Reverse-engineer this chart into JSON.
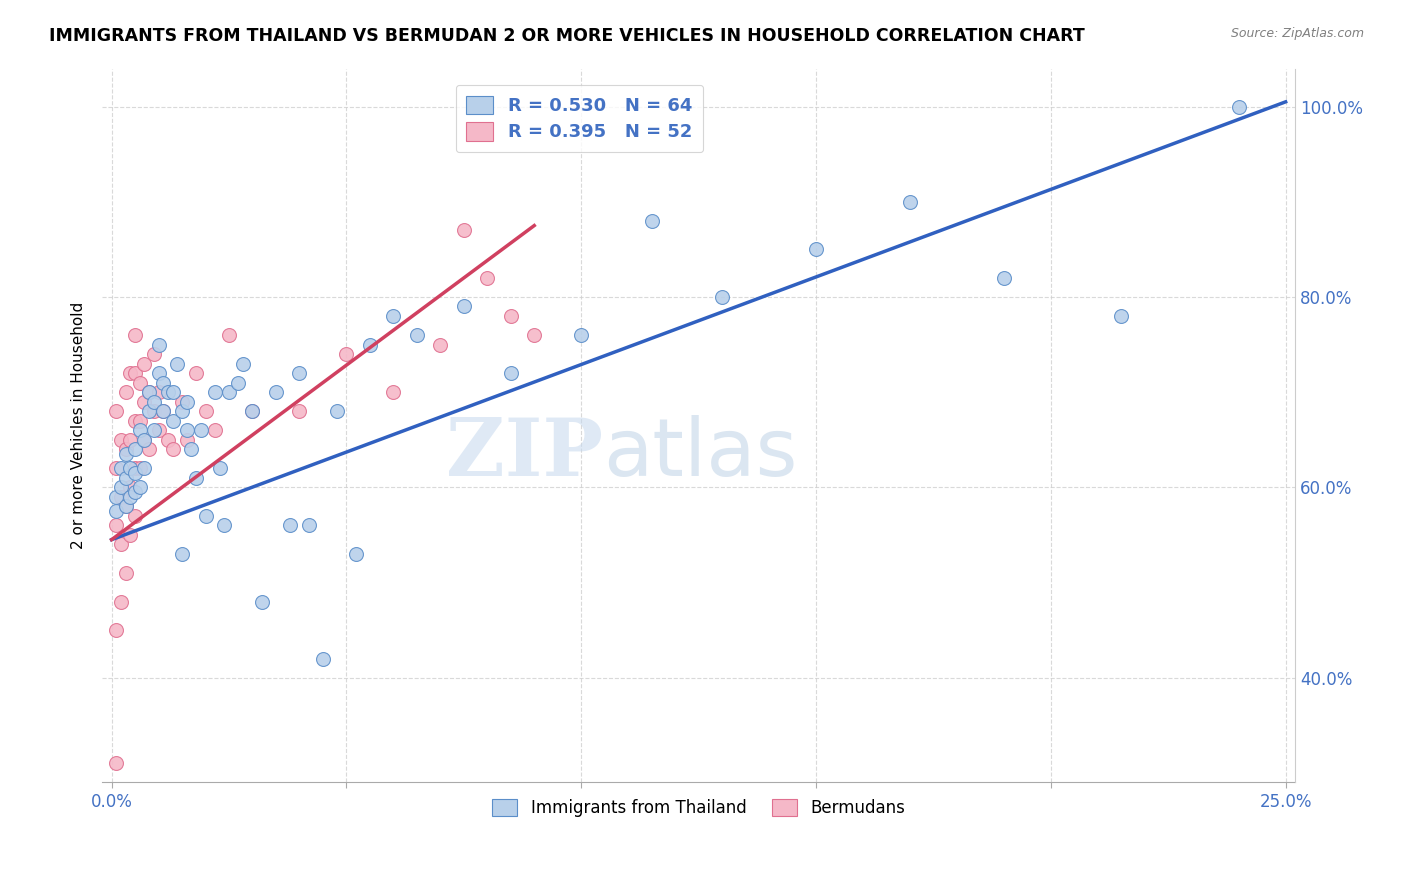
{
  "title": "IMMIGRANTS FROM THAILAND VS BERMUDAN 2 OR MORE VEHICLES IN HOUSEHOLD CORRELATION CHART",
  "source": "Source: ZipAtlas.com",
  "ylabel": "2 or more Vehicles in Household",
  "xlim": [
    -0.002,
    0.252
  ],
  "ylim": [
    0.29,
    1.04
  ],
  "xticks": [
    0.0,
    0.05,
    0.1,
    0.15,
    0.2,
    0.25
  ],
  "xticklabels": [
    "0.0%",
    "",
    "",
    "",
    "",
    "25.0%"
  ],
  "yticks_grid": [
    0.4,
    0.6,
    0.8,
    1.0
  ],
  "yticks_right": [
    0.4,
    0.6,
    0.8,
    1.0
  ],
  "yticklabels_right": [
    "40.0%",
    "60.0%",
    "80.0%",
    "100.0%"
  ],
  "blue_fill_color": "#b8d0ea",
  "pink_fill_color": "#f5b8c8",
  "blue_edge_color": "#5b8ec9",
  "pink_edge_color": "#e07090",
  "blue_line_color": "#3060c0",
  "pink_line_color": "#d04060",
  "legend_R_blue": "R = 0.530",
  "legend_N_blue": "N = 64",
  "legend_R_pink": "R = 0.395",
  "legend_N_pink": "N = 52",
  "legend_label_blue": "Immigrants from Thailand",
  "legend_label_pink": "Bermudans",
  "watermark_zip": "ZIP",
  "watermark_atlas": "atlas",
  "blue_scatter_x": [
    0.001,
    0.001,
    0.002,
    0.002,
    0.003,
    0.003,
    0.003,
    0.004,
    0.004,
    0.005,
    0.005,
    0.005,
    0.006,
    0.006,
    0.007,
    0.007,
    0.008,
    0.008,
    0.009,
    0.009,
    0.01,
    0.01,
    0.011,
    0.011,
    0.012,
    0.013,
    0.013,
    0.014,
    0.015,
    0.015,
    0.016,
    0.016,
    0.017,
    0.018,
    0.019,
    0.02,
    0.022,
    0.023,
    0.024,
    0.025,
    0.027,
    0.028,
    0.03,
    0.032,
    0.035,
    0.038,
    0.04,
    0.042,
    0.045,
    0.048,
    0.052,
    0.055,
    0.06,
    0.065,
    0.075,
    0.085,
    0.1,
    0.115,
    0.13,
    0.15,
    0.17,
    0.19,
    0.215,
    0.24
  ],
  "blue_scatter_y": [
    0.575,
    0.59,
    0.6,
    0.62,
    0.58,
    0.61,
    0.635,
    0.59,
    0.62,
    0.595,
    0.615,
    0.64,
    0.6,
    0.66,
    0.62,
    0.65,
    0.68,
    0.7,
    0.66,
    0.69,
    0.72,
    0.75,
    0.68,
    0.71,
    0.7,
    0.67,
    0.7,
    0.73,
    0.68,
    0.53,
    0.66,
    0.69,
    0.64,
    0.61,
    0.66,
    0.57,
    0.7,
    0.62,
    0.56,
    0.7,
    0.71,
    0.73,
    0.68,
    0.48,
    0.7,
    0.56,
    0.72,
    0.56,
    0.42,
    0.68,
    0.53,
    0.75,
    0.78,
    0.76,
    0.79,
    0.72,
    0.76,
    0.88,
    0.8,
    0.85,
    0.9,
    0.82,
    0.78,
    1.0
  ],
  "pink_scatter_x": [
    0.001,
    0.001,
    0.001,
    0.001,
    0.001,
    0.002,
    0.002,
    0.002,
    0.002,
    0.003,
    0.003,
    0.003,
    0.003,
    0.004,
    0.004,
    0.004,
    0.004,
    0.005,
    0.005,
    0.005,
    0.005,
    0.005,
    0.006,
    0.006,
    0.006,
    0.007,
    0.007,
    0.007,
    0.008,
    0.008,
    0.009,
    0.009,
    0.01,
    0.01,
    0.011,
    0.012,
    0.013,
    0.015,
    0.016,
    0.018,
    0.02,
    0.022,
    0.025,
    0.03,
    0.04,
    0.05,
    0.06,
    0.07,
    0.075,
    0.08,
    0.085,
    0.09
  ],
  "pink_scatter_y": [
    0.31,
    0.45,
    0.56,
    0.62,
    0.68,
    0.48,
    0.54,
    0.59,
    0.65,
    0.51,
    0.58,
    0.64,
    0.7,
    0.55,
    0.6,
    0.65,
    0.72,
    0.57,
    0.62,
    0.67,
    0.72,
    0.76,
    0.62,
    0.67,
    0.71,
    0.65,
    0.69,
    0.73,
    0.64,
    0.7,
    0.68,
    0.74,
    0.66,
    0.7,
    0.68,
    0.65,
    0.64,
    0.69,
    0.65,
    0.72,
    0.68,
    0.66,
    0.76,
    0.68,
    0.68,
    0.74,
    0.7,
    0.75,
    0.87,
    0.82,
    0.78,
    0.76
  ],
  "blue_trendline_x": [
    0.0,
    0.25
  ],
  "blue_trendline_y": [
    0.545,
    1.005
  ],
  "pink_trendline_x": [
    0.0,
    0.09
  ],
  "pink_trendline_y": [
    0.545,
    0.875
  ]
}
